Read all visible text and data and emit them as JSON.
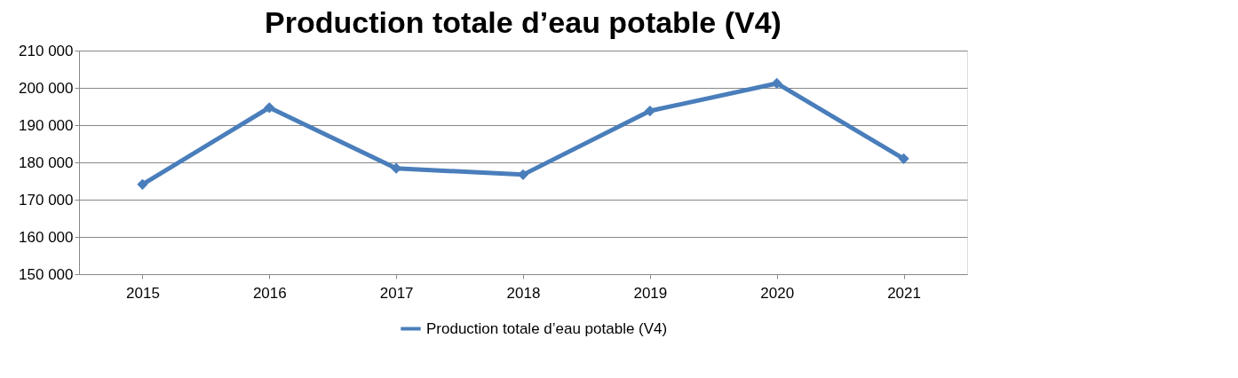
{
  "chart_data": {
    "type": "line",
    "title": "Production totale d’eau potable (V4)",
    "categories": [
      "2015",
      "2016",
      "2017",
      "2018",
      "2019",
      "2020",
      "2021"
    ],
    "series": [
      {
        "name": "Production totale d’eau potable (V4)",
        "color": "#4a7ebb",
        "values": [
          174100,
          194700,
          178400,
          176700,
          193800,
          201200,
          181000
        ]
      }
    ],
    "ylim": [
      150000,
      210000
    ],
    "yticks": [
      150000,
      160000,
      170000,
      180000,
      190000,
      200000,
      210000
    ],
    "grid": "y",
    "legend": "bottom",
    "marker": "diamond",
    "line_style": "solid"
  }
}
